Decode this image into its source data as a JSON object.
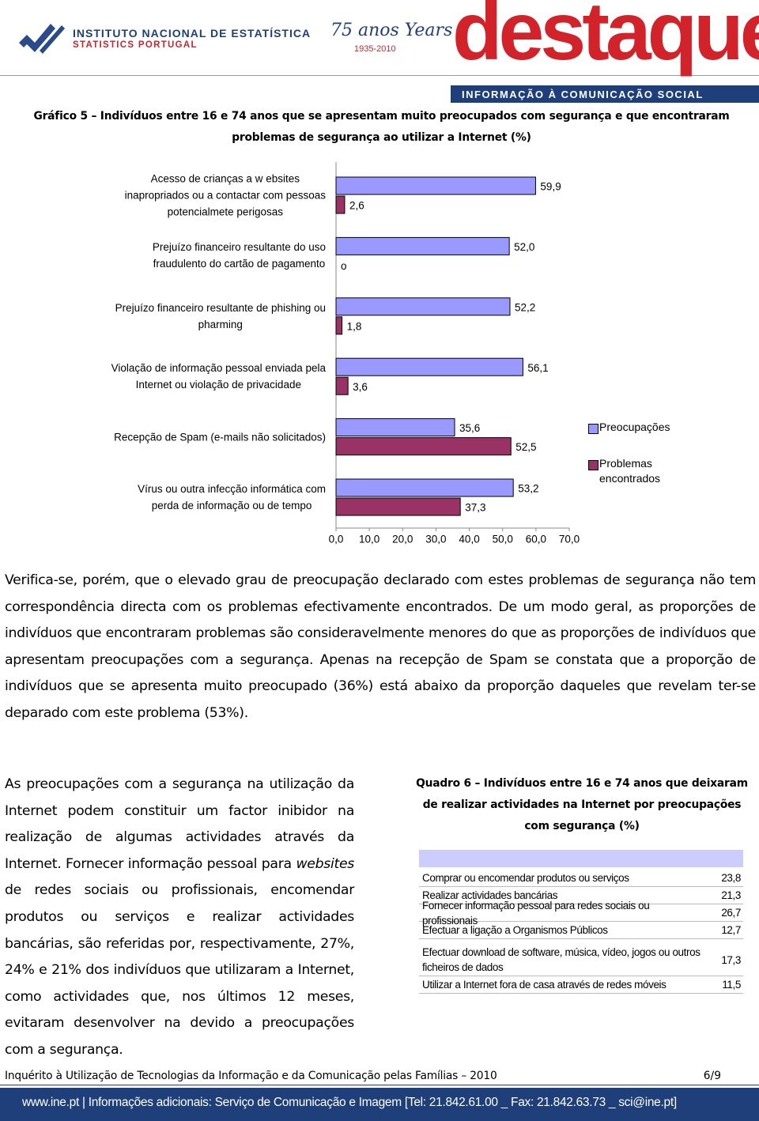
{
  "header": {
    "institute": "INSTITUTO NACIONAL DE ESTATÍSTICA",
    "institute_en": "STATISTICS PORTUGAL",
    "anniversary": "75 anos Years",
    "anniversary_years": "1935-2010",
    "brand": "destaque",
    "tagline": "INFORMAÇÃO À COMUNICAÇÃO SOCIAL"
  },
  "chart_data": {
    "type": "bar",
    "orientation": "horizontal",
    "title": "Gráfico 5 – Indivíduos entre 16 e 74 anos que se apresentam muito preocupados com segurança e que encontraram problemas de segurança ao utilizar a Internet (%)",
    "categories": [
      "Acesso de crianças a w ebsites\ninapropriados ou a contactar com pessoas\npotencialmete perigosas",
      "Prejuízo financeiro resultante do uso\nfraudulento do cartão de pagamento",
      "Prejuízo financeiro resultante de phishing ou\npharming",
      "Violação de informação pessoal enviada pela\nInternet ou violação de privacidade",
      "Recepção de Spam (e-mails não solicitados)",
      "Vírus ou outra infecção informática com\nperda de informação ou de tempo"
    ],
    "series": [
      {
        "name": "Preocupações",
        "color": "#9999ff",
        "values": [
          59.9,
          52.0,
          52.2,
          56.1,
          35.6,
          53.2
        ],
        "value_labels": [
          "59,9",
          "52,0",
          "52,2",
          "56,1",
          "35,6",
          "53,2"
        ]
      },
      {
        "name": "Problemas\nencontrados",
        "color": "#993366",
        "values": [
          2.6,
          0,
          1.8,
          3.6,
          52.5,
          37.3
        ],
        "value_labels": [
          "2,6",
          "o",
          "1,8",
          "3,6",
          "52,5",
          "37,3"
        ]
      }
    ],
    "xlim": [
      0,
      70
    ],
    "xticks": [
      {
        "value": 0,
        "label": "0,0"
      },
      {
        "value": 10,
        "label": "10,0"
      },
      {
        "value": 20,
        "label": "20,0"
      },
      {
        "value": 30,
        "label": "30,0"
      },
      {
        "value": 40,
        "label": "40,0"
      },
      {
        "value": 50,
        "label": "50,0"
      },
      {
        "value": 60,
        "label": "60,0"
      },
      {
        "value": 70,
        "label": "70,0"
      }
    ],
    "legend": "right"
  },
  "paragraph": "Verifica-se, porém, que o elevado grau de preocupação declarado com estes problemas de segurança não tem correspondência directa com os problemas efectivamente encontrados. De um modo geral, as proporções de indivíduos que encontraram problemas são consideravelmente menores do que as proporções de indivíduos que apresentam preocupações com a segurança. Apenas na recepção de Spam se constata que a proporção de indivíduos que se apresenta muito preocupado (36%) está abaixo da proporção daqueles que revelam ter-se deparado com este problema (53%).",
  "left_text": [
    "As preocupações com a segurança na utilização da Internet podem constituir um factor inibidor na realização de algumas actividades através da Internet. Fornecer informação pessoal para ",
    "websites",
    " de redes sociais ou profissionais, encomendar produtos ou serviços e realizar actividades bancárias, são referidas por, respectivamente, 27%, 24% e 21% dos indivíduos que utilizaram a Internet, como actividades que, nos últimos 12 meses, evitaram desenvolver na devido a preocupações com a segurança."
  ],
  "table": {
    "title": "Quadro 6 – Indivíduos entre 16 e 74 anos que deixaram de realizar actividades na Internet por preocupações com segurança (%)",
    "rows": [
      [
        "Comprar ou encomendar produtos ou serviços",
        "23,8"
      ],
      [
        "Realizar actividades bancárias",
        "21,3"
      ],
      [
        "Fornecer informação pessoal para redes sociais ou profissionais",
        "26,7"
      ],
      [
        "Efectuar a ligação a Organismos Públicos",
        "12,7"
      ],
      [
        "Efectuar download de software, música, vídeo, jogos ou outros ficheiros de dados",
        "17,3"
      ],
      [
        "Utilizar a Internet fora de casa através de redes móveis",
        "11,5"
      ]
    ]
  },
  "footer": {
    "note": "Inquérito à Utilização de Tecnologias da Informação e da Comunicação pelas Famílias – 2010",
    "page": "6/9",
    "contact": "www.ine.pt | Informações adicionais: Serviço de Comunicação e Imagem [Tel: 21.842.61.00 _ Fax: 21.842.63.73 _ sci@ine.pt]"
  }
}
